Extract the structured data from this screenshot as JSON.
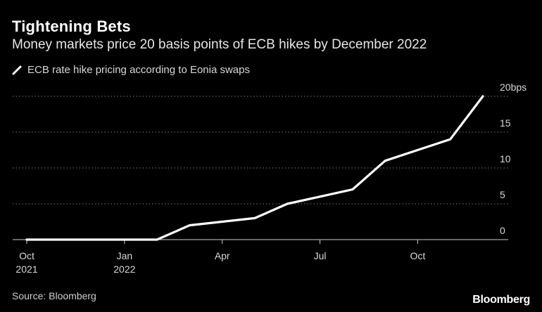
{
  "header": {
    "title": "Tightening Bets",
    "subtitle": "Money markets price 20 basis points of ECB hikes by December 2022"
  },
  "legend": {
    "label": "ECB rate hike pricing according to Eonia swaps",
    "color": "#ffffff"
  },
  "footer": {
    "source": "Source: Bloomberg",
    "brand": "Bloomberg"
  },
  "chart_data": {
    "type": "line",
    "title": "Tightening Bets",
    "subtitle": "Money markets price 20 basis points of ECB hikes by December 2022",
    "xlabel": "",
    "ylabel": "",
    "grid": true,
    "y_axis_side": "right",
    "legend_placement": "top-left",
    "ylim": [
      0,
      20
    ],
    "xlim": [
      "2021-10",
      "2022-12"
    ],
    "y_ticks": [
      {
        "value": 0,
        "label": "0"
      },
      {
        "value": 5,
        "label": "5"
      },
      {
        "value": 10,
        "label": "10"
      },
      {
        "value": 15,
        "label": "15"
      },
      {
        "value": 20,
        "label": "20bps"
      }
    ],
    "x_ticks": [
      {
        "value": "2021-10",
        "label": "Oct",
        "sublabel": "2021"
      },
      {
        "value": "2022-01",
        "label": "Jan",
        "sublabel": "2022"
      },
      {
        "value": "2022-04",
        "label": "Apr",
        "sublabel": ""
      },
      {
        "value": "2022-07",
        "label": "Jul",
        "sublabel": ""
      },
      {
        "value": "2022-10",
        "label": "Oct",
        "sublabel": ""
      }
    ],
    "series": [
      {
        "name": "ECB rate hike pricing according to Eonia swaps",
        "color": "#ffffff",
        "x": [
          "2021-10",
          "2021-11",
          "2021-12",
          "2022-01",
          "2022-02",
          "2022-03",
          "2022-04",
          "2022-05",
          "2022-06",
          "2022-07",
          "2022-08",
          "2022-09",
          "2022-10",
          "2022-11",
          "2022-12"
        ],
        "y": [
          0,
          0,
          0,
          0,
          0,
          2,
          2.5,
          3,
          5,
          6,
          7,
          11,
          12.5,
          14,
          20
        ]
      }
    ]
  }
}
